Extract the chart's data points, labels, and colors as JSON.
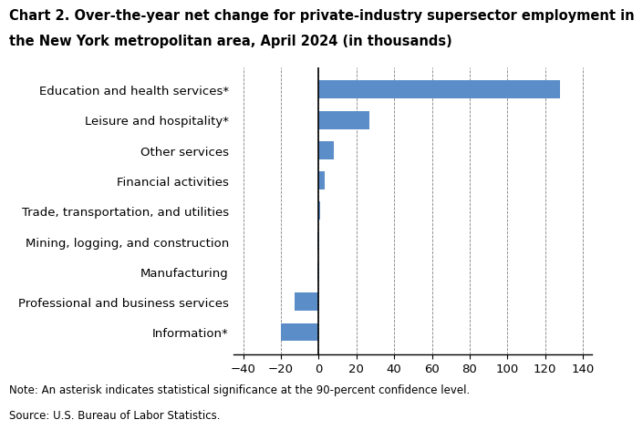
{
  "title_line1": "Chart 2. Over-the-year net change for private-industry supersector employment in",
  "title_line2": "the New York metropolitan area, April 2024 (in thousands)",
  "categories": [
    "Information*",
    "Professional and business services",
    "Manufacturing",
    "Mining, logging, and construction",
    "Trade, transportation, and utilities",
    "Financial activities",
    "Other services",
    "Leisure and hospitality*",
    "Education and health services*"
  ],
  "values": [
    -20,
    -13,
    -0.5,
    -0.5,
    0.5,
    3,
    8,
    27,
    128
  ],
  "bar_color": "#5b8dc8",
  "xlim": [
    -45,
    145
  ],
  "xticks": [
    -40,
    -20,
    0,
    20,
    40,
    60,
    80,
    100,
    120,
    140
  ],
  "note": "Note: An asterisk indicates statistical significance at the 90-percent confidence level.",
  "source": "Source: U.S. Bureau of Labor Statistics.",
  "background_color": "#ffffff",
  "title_fontsize": 10.5,
  "label_fontsize": 9.5,
  "tick_fontsize": 9.5,
  "note_fontsize": 8.5
}
